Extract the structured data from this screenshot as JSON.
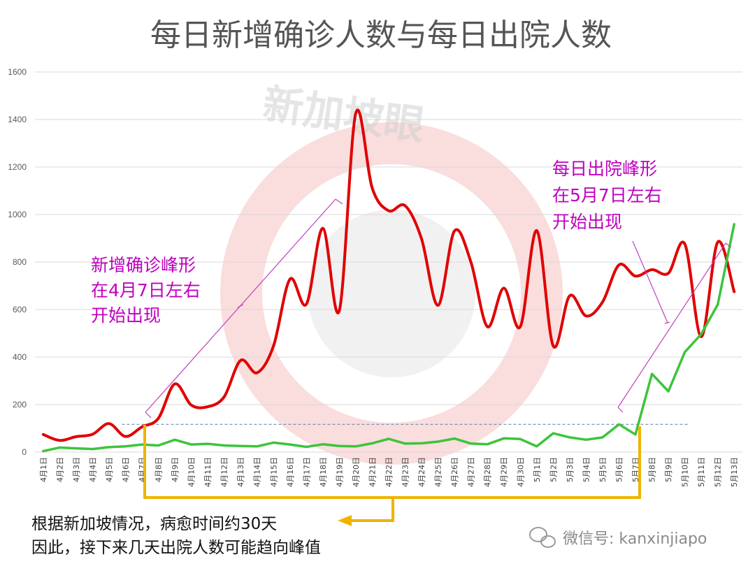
{
  "chart_data": {
    "type": "line",
    "title": "每日新增确诊人数与每日出院人数",
    "ylim": [
      0,
      1600
    ],
    "yticks": [
      0,
      200,
      400,
      600,
      800,
      1000,
      1200,
      1400,
      1600
    ],
    "grid": true,
    "categories": [
      "4月1日",
      "4月2日",
      "4月3日",
      "4月4日",
      "4月5日",
      "4月6日",
      "4月7日",
      "4月8日",
      "4月9日",
      "4月10日",
      "4月11日",
      "4月12日",
      "4月13日",
      "4月14日",
      "4月15日",
      "4月16日",
      "4月17日",
      "4月18日",
      "4月19日",
      "4月20日",
      "4月21日",
      "4月22日",
      "4月23日",
      "4月24日",
      "4月25日",
      "4月26日",
      "4月27日",
      "4月28日",
      "4月29日",
      "4月30日",
      "5月1日",
      "5月2日",
      "5月3日",
      "5月4日",
      "5月5日",
      "5月6日",
      "5月7日",
      "5月8日",
      "5月9日",
      "5月10日",
      "5月11日",
      "5月12日",
      "5月13日"
    ],
    "series": [
      {
        "color": "#e00000",
        "values": [
          74,
          49,
          65,
          75,
          120,
          66,
          106,
          142,
          287,
          198,
          191,
          233,
          386,
          334,
          447,
          728,
          623,
          942,
          596,
          1426,
          1111,
          1016,
          1037,
          897,
          618,
          931,
          799,
          528,
          690,
          528,
          932,
          447,
          658,
          573,
          632,
          788,
          741,
          768,
          753,
          876,
          486,
          884,
          675
        ]
      },
      {
        "color": "#3cc43c",
        "values": [
          4,
          19,
          16,
          13,
          21,
          24,
          32,
          28,
          52,
          32,
          35,
          28,
          26,
          24,
          40,
          32,
          22,
          33,
          26,
          24,
          37,
          56,
          36,
          37,
          44,
          57,
          36,
          33,
          58,
          55,
          24,
          79,
          62,
          52,
          62,
          117,
          74,
          329,
          256,
          421,
          497,
          621,
          959
        ]
      }
    ],
    "reference_line": {
      "value": 117,
      "color": "#5a7fa8"
    },
    "annotations": {
      "confirmed_peak": [
        "新增确诊峰形",
        "在4月7日左右",
        "开始出现"
      ],
      "discharge_peak": [
        "每日出院峰形",
        "在5月7日左右",
        "开始出现"
      ],
      "footer": [
        "根据新加坡情况，病愈时间约30天",
        "因此，接下来几天出院人数可能趋向峰值"
      ]
    },
    "watermark": "新加坡眼",
    "wechat_credit": "微信号: kanxinjiapo",
    "colors": {
      "annotation": "#c000c0",
      "bracket": "#f0b400",
      "grid": "#d9d9d9"
    }
  }
}
